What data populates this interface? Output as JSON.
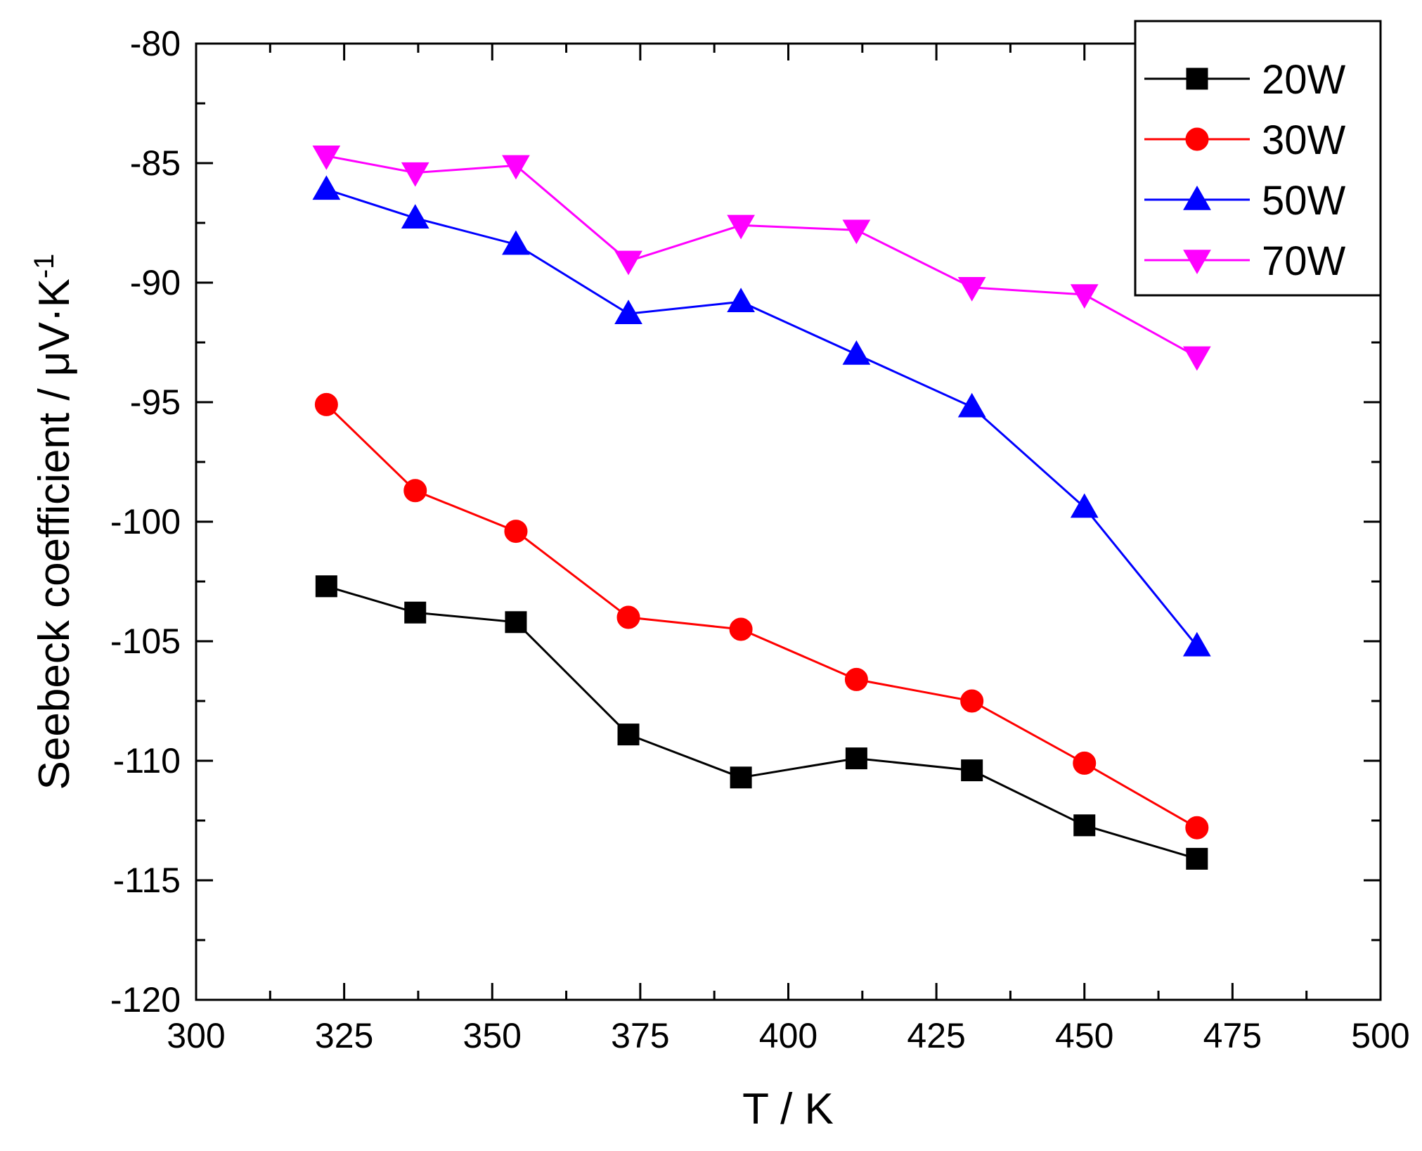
{
  "chart_data": {
    "type": "line",
    "title": "",
    "xlabel": "T / K",
    "ylabel": "Seebeck coefficient / μV·K",
    "ylabel_superscript": "-1",
    "xlim": [
      300,
      500
    ],
    "ylim": [
      -120,
      -80
    ],
    "x_ticks": [
      300,
      325,
      350,
      375,
      400,
      425,
      450,
      475,
      500
    ],
    "x_tick_labels": [
      "300",
      "325",
      "350",
      "375",
      "400",
      "425",
      "450",
      "475",
      "500"
    ],
    "y_ticks": [
      -80,
      -85,
      -90,
      -95,
      -100,
      -105,
      -110,
      -115,
      -120
    ],
    "y_tick_labels": [
      "-80",
      "-85",
      "-90",
      "-95",
      "-100",
      "-105",
      "-110",
      "-115",
      "-120"
    ],
    "grid": false,
    "legend_position": "top-right",
    "x": [
      322,
      337,
      354,
      373,
      392,
      411.5,
      431,
      450,
      469
    ],
    "series": [
      {
        "name": "20W",
        "color": "#000000",
        "marker": "square",
        "x": [
          322,
          337,
          354,
          373,
          392,
          411.5,
          431,
          450,
          469
        ],
        "values": [
          -102.7,
          -103.8,
          -104.2,
          -108.9,
          -110.7,
          -109.9,
          -110.4,
          -112.7,
          -114.1
        ]
      },
      {
        "name": "30W",
        "color": "#ff0000",
        "marker": "circle",
        "x": [
          322,
          337,
          354,
          373,
          392,
          411.5,
          431,
          450,
          469
        ],
        "values": [
          -95.1,
          -98.7,
          -100.4,
          -104.0,
          -104.5,
          -106.6,
          -107.5,
          -110.1,
          -112.8
        ]
      },
      {
        "name": "50W",
        "color": "#0000ff",
        "marker": "triangle-up",
        "x": [
          322,
          337,
          354,
          373,
          392,
          411.5,
          431,
          450,
          469
        ],
        "values": [
          -86.1,
          -87.3,
          -88.4,
          -91.3,
          -90.8,
          -93.0,
          -95.2,
          -99.4,
          -105.2
        ]
      },
      {
        "name": "70W",
        "color": "#ff00ff",
        "marker": "triangle-down",
        "x": [
          322,
          337,
          354,
          373,
          392,
          411.5,
          431,
          450,
          469
        ],
        "values": [
          -84.7,
          -85.4,
          -85.1,
          -89.1,
          -87.6,
          -87.8,
          -90.2,
          -90.5,
          -93.1
        ]
      }
    ]
  }
}
